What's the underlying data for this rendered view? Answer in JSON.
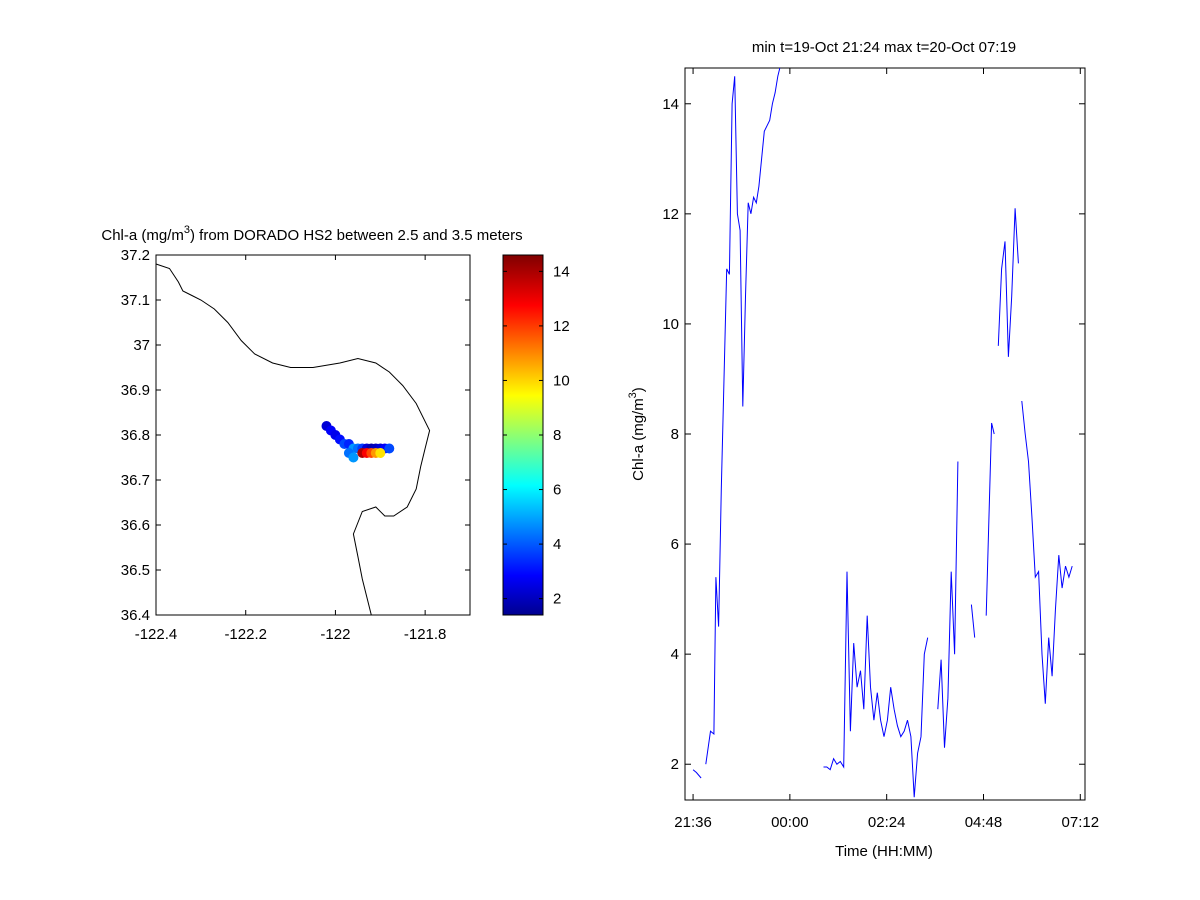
{
  "map": {
    "title_main": "Chl-a (mg/m",
    "title_sup": "3",
    "title_rest": ") from DORADO HS2 between 2.5 and 3.5 meters",
    "xticks": [
      "-122.4",
      "-122.2",
      "-122",
      "-121.8"
    ],
    "yticks": [
      "37.2",
      "37.1",
      "37",
      "36.9",
      "36.8",
      "36.7",
      "36.6",
      "36.5",
      "36.4"
    ],
    "colorbar_ticks": [
      "14",
      "12",
      "10",
      "8",
      "6",
      "4",
      "2"
    ],
    "colormap": "jet",
    "xlim": [
      -122.4,
      -121.7
    ],
    "ylim": [
      36.4,
      37.2
    ]
  },
  "timeseries": {
    "title": "min t=19-Oct 21:24 max t=20-Oct 07:19",
    "xlabel": "Time (HH:MM)",
    "ylabel_main": "Chl-a (mg/m",
    "ylabel_sup": "3",
    "ylabel_rest": ")",
    "xticks": [
      "21:36",
      "00:00",
      "02:24",
      "04:48",
      "07:12"
    ],
    "yticks": [
      "14",
      "12",
      "10",
      "8",
      "6",
      "4",
      "2"
    ],
    "line_color": "#0000ff"
  },
  "chart_data": [
    {
      "type": "scatter",
      "title": "Chl-a (mg/m3) from DORADO HS2 between 2.5 and 3.5 meters",
      "xlim": [
        -122.4,
        -121.7
      ],
      "ylim": [
        36.4,
        37.2
      ],
      "colorbar_range": [
        1.4,
        14.6
      ],
      "coastline": [
        [
          -122.4,
          37.18
        ],
        [
          -122.37,
          37.17
        ],
        [
          -122.35,
          37.14
        ],
        [
          -122.34,
          37.12
        ],
        [
          -122.32,
          37.11
        ],
        [
          -122.3,
          37.1
        ],
        [
          -122.27,
          37.08
        ],
        [
          -122.24,
          37.05
        ],
        [
          -122.21,
          37.01
        ],
        [
          -122.18,
          36.98
        ],
        [
          -122.14,
          36.96
        ],
        [
          -122.1,
          36.95
        ],
        [
          -122.05,
          36.95
        ],
        [
          -121.99,
          36.96
        ],
        [
          -121.95,
          36.97
        ],
        [
          -121.91,
          36.96
        ],
        [
          -121.88,
          36.94
        ],
        [
          -121.85,
          36.91
        ],
        [
          -121.82,
          36.87
        ],
        [
          -121.79,
          36.81
        ],
        [
          -121.8,
          36.77
        ],
        [
          -121.81,
          36.73
        ],
        [
          -121.82,
          36.68
        ],
        [
          -121.84,
          36.64
        ],
        [
          -121.87,
          36.62
        ],
        [
          -121.89,
          36.62
        ],
        [
          -121.91,
          36.64
        ],
        [
          -121.94,
          36.63
        ],
        [
          -121.96,
          36.58
        ],
        [
          -121.95,
          36.53
        ],
        [
          -121.94,
          36.48
        ],
        [
          -121.93,
          36.44
        ],
        [
          -121.92,
          36.4
        ]
      ],
      "points": [
        [
          -122.02,
          36.82,
          2.5
        ],
        [
          -122.01,
          36.81,
          3.0
        ],
        [
          -122.0,
          36.8,
          2.8
        ],
        [
          -121.99,
          36.79,
          3.2
        ],
        [
          -121.98,
          36.78,
          4.0
        ],
        [
          -121.97,
          36.78,
          3.5
        ],
        [
          -121.96,
          36.77,
          5.0
        ],
        [
          -121.95,
          36.77,
          4.5
        ],
        [
          -121.94,
          36.77,
          3.8
        ],
        [
          -121.93,
          36.77,
          2.5
        ],
        [
          -121.92,
          36.77,
          2.0
        ],
        [
          -121.91,
          36.77,
          2.2
        ],
        [
          -121.9,
          36.77,
          2.5
        ],
        [
          -121.89,
          36.77,
          3.0
        ],
        [
          -121.88,
          36.77,
          4.0
        ],
        [
          -121.97,
          36.76,
          4.5
        ],
        [
          -121.96,
          36.75,
          5.0
        ],
        [
          -121.94,
          36.76,
          14.0
        ],
        [
          -121.93,
          36.76,
          13.0
        ],
        [
          -121.92,
          36.76,
          12.0
        ],
        [
          -121.91,
          36.76,
          11.0
        ],
        [
          -121.9,
          36.76,
          10.0
        ]
      ]
    },
    {
      "type": "line",
      "title": "min t=19-Oct 21:24 max t=20-Oct 07:19",
      "xlabel": "Time (HH:MM)",
      "ylabel": "Chl-a (mg/m3)",
      "x_range": [
        "19-Oct 21:24",
        "20-Oct 07:19"
      ],
      "ylim": [
        1.35,
        14.65
      ],
      "segments": [
        {
          "x": [
            "21:36",
            "21:41",
            "21:48"
          ],
          "y": [
            1.9,
            1.85,
            1.75
          ]
        },
        {
          "x": [
            "21:55",
            "22:02",
            "22:07",
            "22:10",
            "22:14",
            "22:18",
            "22:22",
            "22:26",
            "22:30",
            "22:34",
            "22:38",
            "22:42",
            "22:46",
            "22:50",
            "22:54",
            "22:58",
            "23:02",
            "23:06",
            "23:10",
            "23:14",
            "23:18",
            "23:22",
            "23:26",
            "23:30",
            "23:34",
            "23:38",
            "23:42",
            "23:46"
          ],
          "y": [
            2.0,
            2.6,
            2.55,
            5.4,
            4.5,
            7.0,
            9.0,
            11.0,
            10.9,
            14.0,
            14.5,
            12.0,
            11.7,
            8.5,
            10.5,
            12.2,
            12.0,
            12.3,
            12.2,
            12.5,
            13.0,
            13.5,
            13.6,
            13.7,
            14.0,
            14.2,
            14.5,
            14.7
          ]
        },
        {
          "x": [
            "00:50",
            "00:55",
            "01:00",
            "01:05",
            "01:10",
            "01:15",
            "01:20",
            "01:25",
            "01:30",
            "01:35",
            "01:40",
            "01:45",
            "01:50",
            "01:55",
            "02:00",
            "02:05",
            "02:10",
            "02:15",
            "02:20",
            "02:25",
            "02:30",
            "02:35",
            "02:40",
            "02:45",
            "02:50",
            "02:55",
            "03:00",
            "03:05",
            "03:10",
            "03:15",
            "03:20",
            "03:25"
          ],
          "y": [
            1.95,
            1.95,
            1.9,
            2.1,
            2.0,
            2.05,
            1.95,
            5.5,
            2.6,
            4.2,
            3.4,
            3.7,
            3.0,
            4.7,
            3.4,
            2.8,
            3.3,
            2.8,
            2.5,
            2.8,
            3.4,
            3.0,
            2.7,
            2.5,
            2.6,
            2.8,
            2.5,
            1.4,
            2.2,
            2.5,
            4.0,
            4.3
          ]
        },
        {
          "x": [
            "03:40",
            "03:45",
            "03:50",
            "03:55",
            "04:00",
            "04:05",
            "04:10"
          ],
          "y": [
            3.0,
            3.9,
            2.3,
            3.2,
            5.5,
            4.0,
            7.5
          ]
        },
        {
          "x": [
            "04:30",
            "04:35"
          ],
          "y": [
            4.9,
            4.3
          ]
        },
        {
          "x": [
            "04:52",
            "04:55",
            "05:00",
            "05:04"
          ],
          "y": [
            4.7,
            6.0,
            8.2,
            8.0
          ]
        },
        {
          "x": [
            "05:10",
            "05:15",
            "05:20",
            "05:25",
            "05:30",
            "05:35",
            "05:40"
          ],
          "y": [
            9.6,
            11.0,
            11.5,
            9.4,
            10.5,
            12.1,
            11.1
          ]
        },
        {
          "x": [
            "05:45",
            "05:50",
            "05:55",
            "06:00",
            "06:05",
            "06:10",
            "06:15",
            "06:20",
            "06:25",
            "06:30",
            "06:35",
            "06:40",
            "06:45",
            "06:50",
            "06:55",
            "07:00"
          ],
          "y": [
            8.6,
            8.0,
            7.5,
            6.5,
            5.4,
            5.5,
            4.0,
            3.1,
            4.3,
            3.6,
            4.8,
            5.8,
            5.2,
            5.6,
            5.4,
            5.6
          ]
        }
      ]
    }
  ]
}
